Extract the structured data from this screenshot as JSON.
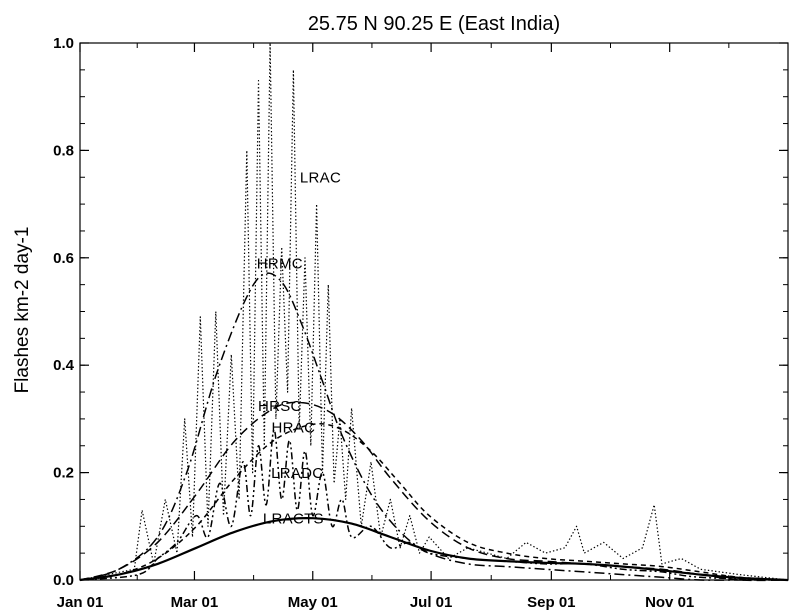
{
  "chart_data": {
    "type": "line",
    "title": "25.75 N  90.25 E  (East India)",
    "ylabel": "Flashes km-2 day-1",
    "xlabel": "",
    "xlim": [
      0,
      365
    ],
    "ylim": [
      0,
      1.0
    ],
    "x_ticks": [
      {
        "label": "Jan 01",
        "day": 0
      },
      {
        "label": "Mar 01",
        "day": 59
      },
      {
        "label": "May 01",
        "day": 120
      },
      {
        "label": "Jul 01",
        "day": 181
      },
      {
        "label": "Sep 01",
        "day": 243
      },
      {
        "label": "Nov 01",
        "day": 304
      }
    ],
    "y_ticks": [
      {
        "label": "0.0",
        "value": 0.0
      },
      {
        "label": "0.2",
        "value": 0.2
      },
      {
        "label": "0.4",
        "value": 0.4
      },
      {
        "label": "0.6",
        "value": 0.6
      },
      {
        "label": "0.8",
        "value": 0.8
      },
      {
        "label": "1.0",
        "value": 1.0
      }
    ],
    "grid": false,
    "series": [
      {
        "name": "HRMC",
        "style": "dash-dot",
        "x": [
          0,
          20,
          40,
          55,
          70,
          85,
          95,
          105,
          115,
          125,
          135,
          150,
          165,
          180,
          200,
          220,
          240,
          260,
          280,
          300,
          320,
          340,
          365
        ],
        "y": [
          0.0,
          0.02,
          0.08,
          0.2,
          0.38,
          0.52,
          0.57,
          0.55,
          0.47,
          0.37,
          0.27,
          0.16,
          0.09,
          0.05,
          0.03,
          0.025,
          0.02,
          0.015,
          0.01,
          0.005,
          0.0,
          0.0,
          0.0
        ]
      },
      {
        "name": "HRSC",
        "style": "dashed",
        "x": [
          0,
          20,
          40,
          60,
          80,
          100,
          115,
          130,
          145,
          160,
          180,
          200,
          220,
          240,
          260,
          280,
          300,
          320,
          340,
          365
        ],
        "y": [
          0.0,
          0.02,
          0.07,
          0.16,
          0.26,
          0.32,
          0.33,
          0.31,
          0.26,
          0.19,
          0.11,
          0.06,
          0.04,
          0.035,
          0.03,
          0.025,
          0.02,
          0.01,
          0.0,
          0.0
        ]
      },
      {
        "name": "HRAC",
        "style": "short-dashed",
        "x": [
          0,
          20,
          40,
          60,
          80,
          100,
          120,
          135,
          150,
          165,
          180,
          200,
          220,
          240,
          260,
          280,
          300,
          320,
          340,
          365
        ],
        "y": [
          0.0,
          0.01,
          0.04,
          0.1,
          0.19,
          0.26,
          0.29,
          0.28,
          0.24,
          0.18,
          0.12,
          0.07,
          0.05,
          0.04,
          0.035,
          0.03,
          0.025,
          0.015,
          0.005,
          0.0
        ]
      },
      {
        "name": "LRACTS",
        "style": "solid",
        "x": [
          0,
          20,
          40,
          60,
          80,
          100,
          120,
          140,
          160,
          180,
          200,
          220,
          240,
          260,
          280,
          300,
          320,
          340,
          365
        ],
        "y": [
          0.0,
          0.01,
          0.03,
          0.06,
          0.09,
          0.11,
          0.115,
          0.105,
          0.08,
          0.055,
          0.04,
          0.035,
          0.032,
          0.03,
          0.025,
          0.018,
          0.01,
          0.004,
          0.0
        ]
      },
      {
        "name": "LRAC",
        "style": "dotted",
        "x": [
          0,
          28,
          32,
          38,
          44,
          50,
          54,
          58,
          62,
          66,
          70,
          74,
          78,
          82,
          86,
          89,
          92,
          95,
          98,
          101,
          104,
          107,
          110,
          113,
          116,
          119,
          122,
          125,
          128,
          131,
          134,
          137,
          140,
          145,
          150,
          155,
          160,
          165,
          170,
          175,
          180,
          190,
          200,
          210,
          220,
          230,
          240,
          250,
          256,
          260,
          270,
          280,
          290,
          296,
          300,
          310,
          320,
          340,
          365
        ],
        "y": [
          0.0,
          0.02,
          0.13,
          0.03,
          0.15,
          0.05,
          0.3,
          0.08,
          0.49,
          0.1,
          0.5,
          0.12,
          0.42,
          0.15,
          0.8,
          0.2,
          0.93,
          0.25,
          1.0,
          0.3,
          0.62,
          0.35,
          0.95,
          0.28,
          0.6,
          0.25,
          0.7,
          0.2,
          0.55,
          0.18,
          0.3,
          0.15,
          0.32,
          0.1,
          0.22,
          0.08,
          0.15,
          0.06,
          0.12,
          0.05,
          0.08,
          0.04,
          0.06,
          0.05,
          0.04,
          0.07,
          0.05,
          0.06,
          0.1,
          0.05,
          0.07,
          0.04,
          0.06,
          0.14,
          0.03,
          0.04,
          0.02,
          0.01,
          0.0
        ]
      },
      {
        "name": "LRADC",
        "style": "dash-dot-dot",
        "x": [
          0,
          30,
          40,
          50,
          60,
          66,
          72,
          78,
          84,
          88,
          92,
          96,
          100,
          104,
          108,
          112,
          116,
          120,
          125,
          130,
          135,
          140,
          150,
          160,
          170,
          180,
          200,
          220,
          240,
          260,
          280,
          300,
          320,
          365
        ],
        "y": [
          0.0,
          0.01,
          0.04,
          0.07,
          0.12,
          0.08,
          0.18,
          0.1,
          0.22,
          0.12,
          0.25,
          0.14,
          0.28,
          0.15,
          0.26,
          0.13,
          0.24,
          0.12,
          0.2,
          0.1,
          0.15,
          0.08,
          0.1,
          0.06,
          0.07,
          0.05,
          0.04,
          0.035,
          0.03,
          0.03,
          0.02,
          0.015,
          0.005,
          0.0
        ]
      }
    ],
    "annotations": [
      {
        "text": "LRAC",
        "x": 124,
        "y": 0.74
      },
      {
        "text": "HRMC",
        "x": 103,
        "y": 0.58
      },
      {
        "text": "HRSC",
        "x": 103,
        "y": 0.315
      },
      {
        "text": "HRAC",
        "x": 110,
        "y": 0.275
      },
      {
        "text": "LRADC",
        "x": 112,
        "y": 0.19
      },
      {
        "text": "LRACTS",
        "x": 110,
        "y": 0.105
      }
    ]
  }
}
